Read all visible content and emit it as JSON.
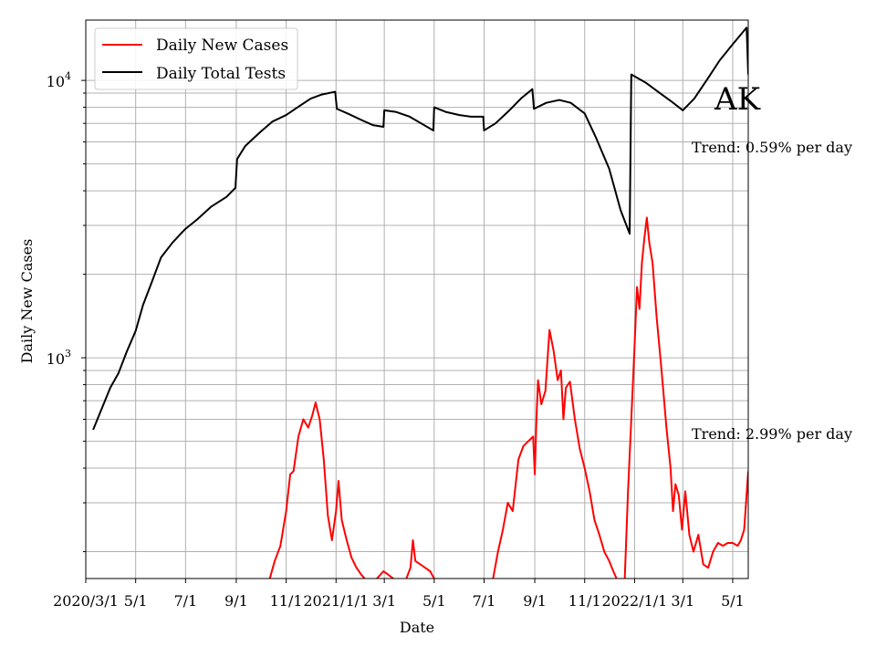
{
  "chart_data": {
    "type": "line",
    "xlabel": "Date",
    "ylabel": "Daily New Cases",
    "yscale": "log",
    "ylim": [
      160,
      16500
    ],
    "xlim": [
      "2020-03-01",
      "2022-05-20"
    ],
    "grid": true,
    "legend_position": "top-left",
    "x_ticks": [
      {
        "date": "2020-03-01",
        "label": "2020/3/1"
      },
      {
        "date": "2020-05-01",
        "label": "5/1"
      },
      {
        "date": "2020-07-01",
        "label": "7/1"
      },
      {
        "date": "2020-09-01",
        "label": "9/1"
      },
      {
        "date": "2020-11-01",
        "label": "11/1"
      },
      {
        "date": "2021-01-01",
        "label": "2021/1/1"
      },
      {
        "date": "2021-03-01",
        "label": "3/1"
      },
      {
        "date": "2021-05-01",
        "label": "5/1"
      },
      {
        "date": "2021-07-01",
        "label": "7/1"
      },
      {
        "date": "2021-09-01",
        "label": "9/1"
      },
      {
        "date": "2021-11-01",
        "label": "11/1"
      },
      {
        "date": "2022-01-01",
        "label": "2022/1/1"
      },
      {
        "date": "2022-03-01",
        "label": "3/1"
      },
      {
        "date": "2022-05-01",
        "label": "5/1"
      }
    ],
    "y_ticks": [
      {
        "value": 1000,
        "base": "10",
        "exp": "3"
      },
      {
        "value": 10000,
        "base": "10",
        "exp": "4"
      }
    ],
    "state_label": "AK",
    "annotations": {
      "tests_trend": "Trend: 0.59% per day",
      "cases_trend": "Trend: 2.99% per day"
    },
    "series": [
      {
        "name": "Daily New Cases",
        "color": "#ff0000",
        "points": [
          [
            "2020-10-12",
            160
          ],
          [
            "2020-10-18",
            185
          ],
          [
            "2020-10-25",
            210
          ],
          [
            "2020-11-01",
            280
          ],
          [
            "2020-11-06",
            380
          ],
          [
            "2020-11-10",
            390
          ],
          [
            "2020-11-16",
            520
          ],
          [
            "2020-11-22",
            600
          ],
          [
            "2020-11-28",
            560
          ],
          [
            "2020-12-03",
            620
          ],
          [
            "2020-12-07",
            690
          ],
          [
            "2020-12-12",
            600
          ],
          [
            "2020-12-17",
            430
          ],
          [
            "2020-12-22",
            270
          ],
          [
            "2020-12-27",
            220
          ],
          [
            "2021-01-01",
            280
          ],
          [
            "2021-01-04",
            360
          ],
          [
            "2021-01-08",
            260
          ],
          [
            "2021-01-14",
            220
          ],
          [
            "2021-01-20",
            190
          ],
          [
            "2021-01-26",
            175
          ],
          [
            "2021-02-01",
            165
          ],
          [
            "2021-02-05",
            160
          ]
        ]
      },
      {
        "name": "Daily New Cases",
        "color": "#ff0000",
        "points": [
          [
            "2021-02-20",
            160
          ],
          [
            "2021-02-28",
            170
          ],
          [
            "2021-03-06",
            165
          ],
          [
            "2021-03-12",
            160
          ]
        ]
      },
      {
        "name": "Daily New Cases",
        "color": "#ff0000",
        "points": [
          [
            "2021-03-28",
            160
          ],
          [
            "2021-04-02",
            175
          ],
          [
            "2021-04-05",
            220
          ],
          [
            "2021-04-08",
            185
          ],
          [
            "2021-04-14",
            180
          ],
          [
            "2021-04-20",
            175
          ],
          [
            "2021-04-26",
            170
          ],
          [
            "2021-05-01",
            160
          ]
        ]
      },
      {
        "name": "Daily New Cases",
        "color": "#ff0000",
        "points": [
          [
            "2021-07-12",
            160
          ],
          [
            "2021-07-18",
            200
          ],
          [
            "2021-07-24",
            240
          ],
          [
            "2021-07-30",
            300
          ],
          [
            "2021-08-05",
            280
          ],
          [
            "2021-08-12",
            430
          ],
          [
            "2021-08-18",
            480
          ],
          [
            "2021-08-24",
            500
          ],
          [
            "2021-08-30",
            520
          ],
          [
            "2021-09-01",
            380
          ],
          [
            "2021-09-03",
            600
          ],
          [
            "2021-09-05",
            830
          ],
          [
            "2021-09-09",
            680
          ],
          [
            "2021-09-14",
            760
          ],
          [
            "2021-09-19",
            1260
          ],
          [
            "2021-09-24",
            1060
          ],
          [
            "2021-09-29",
            830
          ],
          [
            "2021-10-03",
            900
          ],
          [
            "2021-10-06",
            600
          ],
          [
            "2021-10-09",
            780
          ],
          [
            "2021-10-14",
            820
          ],
          [
            "2021-10-20",
            600
          ],
          [
            "2021-10-26",
            470
          ],
          [
            "2021-11-01",
            400
          ],
          [
            "2021-11-07",
            330
          ],
          [
            "2021-11-13",
            260
          ],
          [
            "2021-11-19",
            230
          ],
          [
            "2021-11-25",
            200
          ],
          [
            "2021-12-01",
            185
          ],
          [
            "2021-12-06",
            170
          ],
          [
            "2021-12-10",
            160
          ]
        ]
      },
      {
        "name": "Daily New Cases",
        "color": "#ff0000",
        "points": [
          [
            "2021-12-20",
            160
          ],
          [
            "2021-12-24",
            330
          ],
          [
            "2021-12-28",
            600
          ],
          [
            "2022-01-01",
            1100
          ],
          [
            "2022-01-04",
            1800
          ],
          [
            "2022-01-07",
            1500
          ],
          [
            "2022-01-10",
            2200
          ],
          [
            "2022-01-13",
            2700
          ],
          [
            "2022-01-16",
            3200
          ],
          [
            "2022-01-19",
            2600
          ],
          [
            "2022-01-23",
            2200
          ],
          [
            "2022-01-28",
            1400
          ],
          [
            "2022-02-03",
            900
          ],
          [
            "2022-02-09",
            560
          ],
          [
            "2022-02-14",
            400
          ],
          [
            "2022-02-17",
            280
          ],
          [
            "2022-02-20",
            350
          ],
          [
            "2022-02-24",
            320
          ],
          [
            "2022-02-28",
            240
          ],
          [
            "2022-03-04",
            330
          ],
          [
            "2022-03-09",
            230
          ],
          [
            "2022-03-14",
            200
          ],
          [
            "2022-03-20",
            230
          ],
          [
            "2022-03-26",
            180
          ],
          [
            "2022-04-01",
            175
          ],
          [
            "2022-04-07",
            200
          ],
          [
            "2022-04-13",
            215
          ],
          [
            "2022-04-19",
            210
          ],
          [
            "2022-04-25",
            215
          ],
          [
            "2022-05-01",
            215
          ],
          [
            "2022-05-07",
            210
          ],
          [
            "2022-05-11",
            220
          ],
          [
            "2022-05-15",
            240
          ],
          [
            "2022-05-20",
            390
          ]
        ]
      },
      {
        "name": "Daily Total Tests",
        "color": "#000000",
        "points": [
          [
            "2020-03-10",
            550
          ],
          [
            "2020-03-20",
            650
          ],
          [
            "2020-03-31",
            780
          ],
          [
            "2020-04-10",
            880
          ],
          [
            "2020-04-20",
            1050
          ],
          [
            "2020-05-01",
            1250
          ],
          [
            "2020-05-10",
            1550
          ],
          [
            "2020-05-20",
            1850
          ],
          [
            "2020-06-01",
            2300
          ],
          [
            "2020-06-15",
            2600
          ],
          [
            "2020-06-30",
            2900
          ],
          [
            "2020-07-15",
            3150
          ],
          [
            "2020-08-01",
            3500
          ],
          [
            "2020-08-20",
            3800
          ],
          [
            "2020-08-31",
            4100
          ],
          [
            "2020-09-02",
            5200
          ],
          [
            "2020-09-12",
            5800
          ],
          [
            "2020-09-30",
            6500
          ],
          [
            "2020-10-15",
            7100
          ],
          [
            "2020-11-01",
            7500
          ],
          [
            "2020-11-15",
            8000
          ],
          [
            "2020-12-01",
            8600
          ],
          [
            "2020-12-15",
            8900
          ],
          [
            "2020-12-31",
            9100
          ],
          [
            "2021-01-02",
            7900
          ],
          [
            "2021-01-15",
            7600
          ],
          [
            "2021-02-01",
            7200
          ],
          [
            "2021-02-15",
            6900
          ],
          [
            "2021-02-28",
            6800
          ],
          [
            "2021-03-01",
            7800
          ],
          [
            "2021-03-15",
            7700
          ],
          [
            "2021-04-01",
            7400
          ],
          [
            "2021-04-15",
            7000
          ],
          [
            "2021-04-30",
            6600
          ],
          [
            "2021-05-01",
            8000
          ],
          [
            "2021-05-15",
            7700
          ],
          [
            "2021-06-01",
            7500
          ],
          [
            "2021-06-15",
            7400
          ],
          [
            "2021-06-30",
            7400
          ],
          [
            "2021-07-01",
            6600
          ],
          [
            "2021-07-15",
            7000
          ],
          [
            "2021-08-01",
            7800
          ],
          [
            "2021-08-15",
            8600
          ],
          [
            "2021-08-29",
            9300
          ],
          [
            "2021-08-31",
            7900
          ],
          [
            "2021-09-15",
            8300
          ],
          [
            "2021-10-01",
            8500
          ],
          [
            "2021-10-15",
            8300
          ],
          [
            "2021-11-01",
            7600
          ],
          [
            "2021-11-15",
            6200
          ],
          [
            "2021-12-01",
            4800
          ],
          [
            "2021-12-15",
            3400
          ],
          [
            "2021-12-26",
            2800
          ],
          [
            "2021-12-28",
            10500
          ],
          [
            "2022-01-15",
            9800
          ],
          [
            "2022-02-01",
            9000
          ],
          [
            "2022-02-15",
            8400
          ],
          [
            "2022-03-01",
            7800
          ],
          [
            "2022-03-15",
            8600
          ],
          [
            "2022-04-01",
            10200
          ],
          [
            "2022-04-15",
            11800
          ],
          [
            "2022-05-01",
            13500
          ],
          [
            "2022-05-18",
            15500
          ],
          [
            "2022-05-20",
            10500
          ]
        ]
      }
    ]
  }
}
